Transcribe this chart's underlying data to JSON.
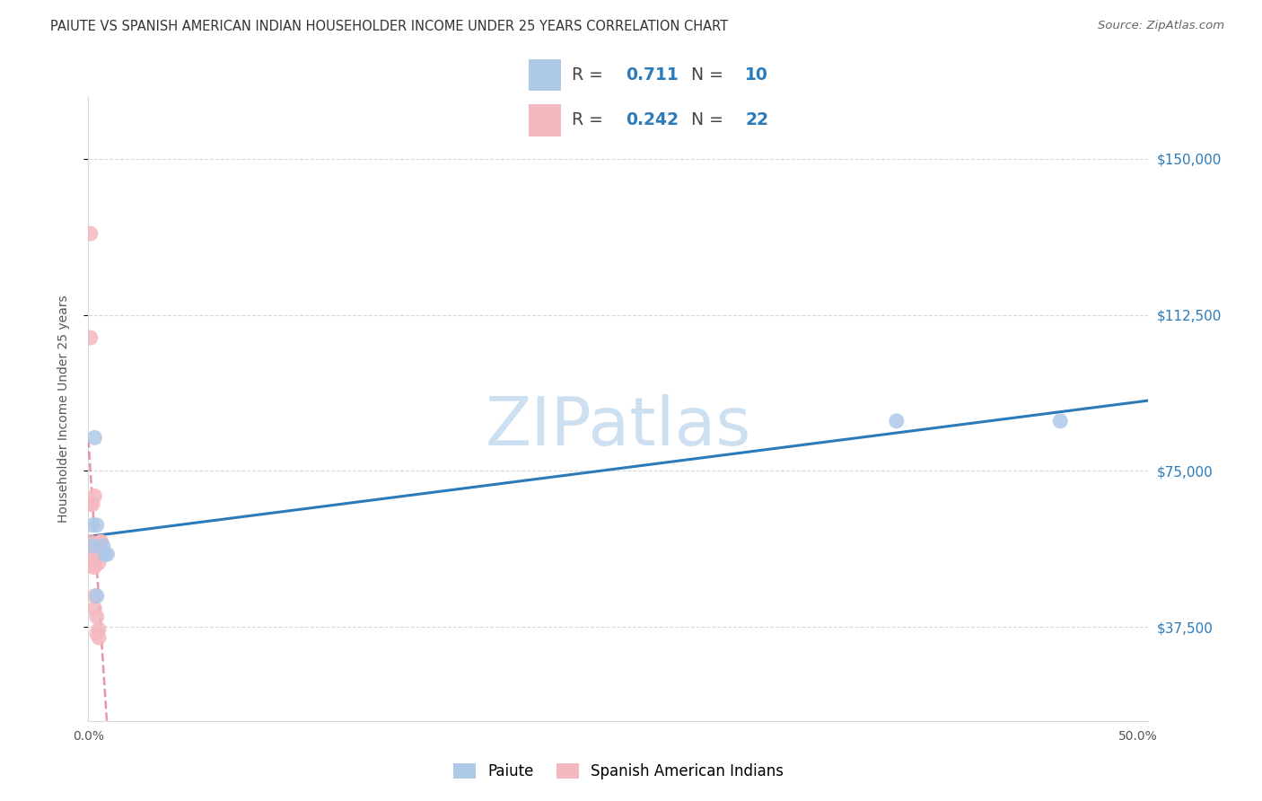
{
  "title": "PAIUTE VS SPANISH AMERICAN INDIAN HOUSEHOLDER INCOME UNDER 25 YEARS CORRELATION CHART",
  "source": "Source: ZipAtlas.com",
  "ylabel": "Householder Income Under 25 years",
  "watermark": "ZIPatlas",
  "legend_labels": [
    "Paiute",
    "Spanish American Indians"
  ],
  "paiute_R": 0.711,
  "paiute_N": 10,
  "spanish_R": 0.242,
  "spanish_N": 22,
  "xlim": [
    0.0,
    0.505
  ],
  "ylim": [
    15000,
    165000
  ],
  "yticks": [
    37500,
    75000,
    112500,
    150000
  ],
  "ytick_labels": [
    "$37,500",
    "$75,000",
    "$112,500",
    "$150,000"
  ],
  "xticks": [
    0.0,
    0.1,
    0.2,
    0.3,
    0.4,
    0.5
  ],
  "xtick_labels": [
    "0.0%",
    "",
    "",
    "",
    "",
    "50.0%"
  ],
  "paiute_color": "#aec8e8",
  "spanish_color": "#f4b8c0",
  "paiute_line_color": "#2b7bba",
  "spanish_line_color": "#d44060",
  "bg_color": "#ffffff",
  "grid_color": "#d8d8d8",
  "paiute_x": [
    0.002,
    0.002,
    0.003,
    0.004,
    0.004,
    0.007,
    0.008,
    0.009,
    0.385,
    0.463
  ],
  "paiute_y": [
    62000,
    57000,
    83000,
    45000,
    62000,
    57000,
    55000,
    55000,
    87000,
    87000
  ],
  "spanish_x": [
    0.001,
    0.001,
    0.001,
    0.001,
    0.002,
    0.002,
    0.002,
    0.002,
    0.003,
    0.003,
    0.003,
    0.003,
    0.003,
    0.003,
    0.004,
    0.004,
    0.004,
    0.005,
    0.005,
    0.005,
    0.006,
    0.006
  ],
  "spanish_y": [
    132000,
    107000,
    67000,
    58000,
    67000,
    57000,
    55000,
    52000,
    69000,
    57000,
    53000,
    52000,
    45000,
    42000,
    56000,
    40000,
    36000,
    53000,
    37000,
    35000,
    58000,
    58000
  ],
  "title_fontsize": 10.5,
  "axis_label_fontsize": 10,
  "tick_fontsize": 10,
  "source_fontsize": 9.5,
  "right_ytick_color": "#2b7bba",
  "right_ytick_fontsize": 11
}
